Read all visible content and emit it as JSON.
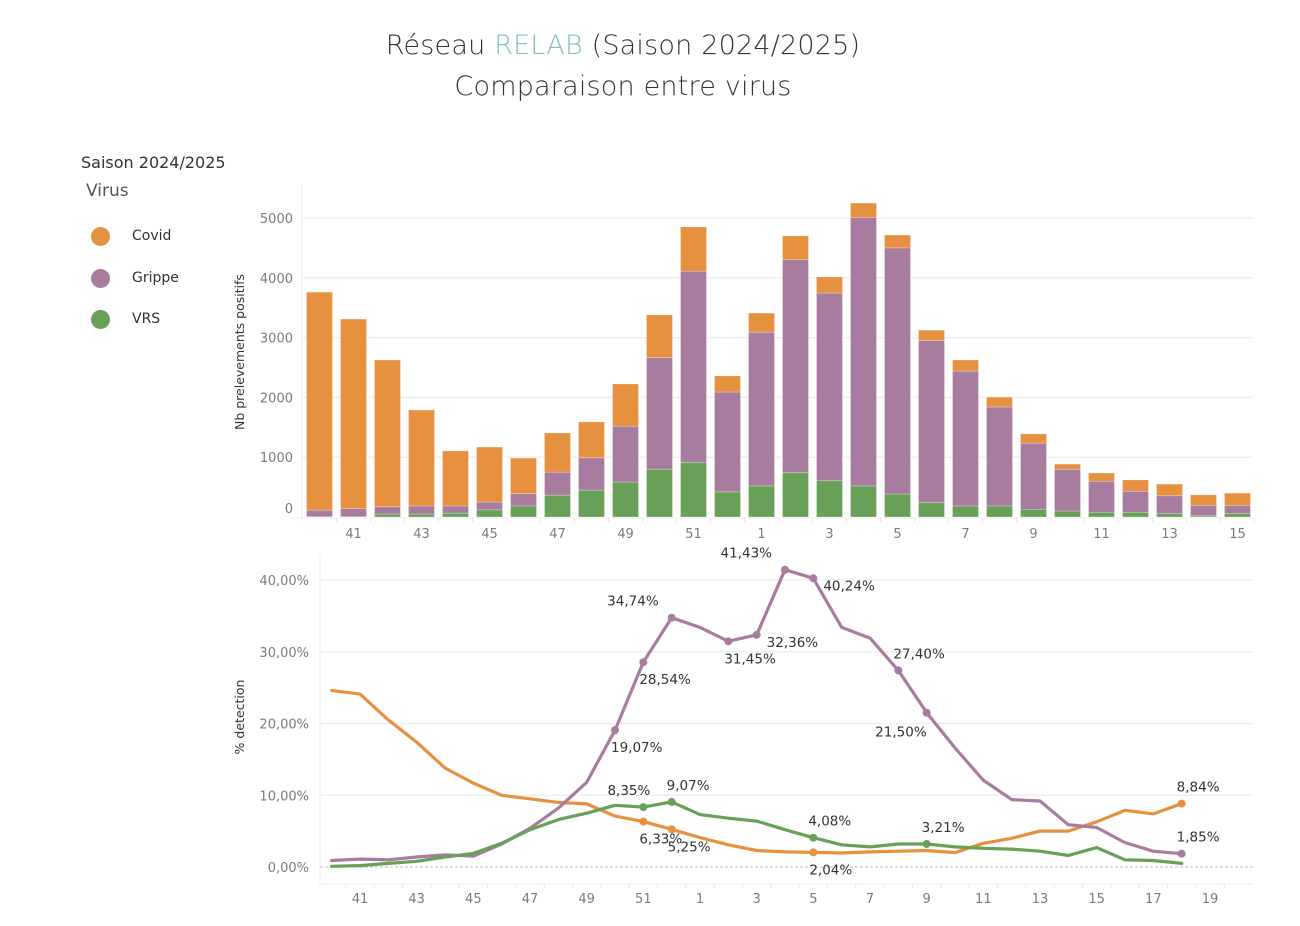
{
  "header": {
    "title_prefix": "Réseau ",
    "title_accent": "RELAB",
    "title_suffix": " (Saison 2024/2025)",
    "subtitle": "Comparaison entre virus",
    "accent_color": "#7fbfbd"
  },
  "legend": {
    "season": "Saison 2024/2025",
    "title": "Virus",
    "items": [
      {
        "label": "Covid",
        "color": "#e5913f"
      },
      {
        "label": "Grippe",
        "color": "#a77c9e"
      },
      {
        "label": "VRS",
        "color": "#67a056"
      }
    ]
  },
  "chart_data": [
    {
      "type": "bar",
      "stacked": true,
      "title": "",
      "xlabel": "",
      "ylabel": "Nb prelevements positifs",
      "ylim": [
        0,
        5300
      ],
      "yticks": [
        0,
        1000,
        2000,
        3000,
        4000,
        5000
      ],
      "ytick_labels": [
        "0",
        "1000",
        "2000",
        "3000",
        "4000",
        "5000"
      ],
      "grid": true,
      "categories": [
        40,
        41,
        42,
        43,
        44,
        45,
        46,
        47,
        48,
        49,
        50,
        51,
        52,
        1,
        2,
        3,
        4,
        5,
        6,
        7,
        8,
        9,
        10,
        11,
        12,
        13,
        14,
        15
      ],
      "xtick_labels": [
        "41",
        "43",
        "45",
        "47",
        "49",
        "51",
        "1",
        "3",
        "5",
        "7",
        "9",
        "11",
        "13",
        "15"
      ],
      "series": [
        {
          "name": "VRS",
          "color": "#67a056",
          "values": [
            5,
            5,
            50,
            50,
            65,
            120,
            185,
            365,
            450,
            585,
            800,
            915,
            420,
            520,
            745,
            610,
            520,
            385,
            240,
            185,
            185,
            130,
            100,
            80,
            80,
            55,
            20,
            55
          ]
        },
        {
          "name": "Grippe",
          "color": "#a77c9e",
          "values": [
            110,
            135,
            120,
            135,
            120,
            130,
            205,
            385,
            540,
            935,
            1865,
            3195,
            1670,
            2570,
            3560,
            3135,
            4490,
            4115,
            2710,
            2255,
            1655,
            1105,
            700,
            520,
            350,
            300,
            175,
            140
          ]
        },
        {
          "name": "Covid",
          "color": "#e5913f",
          "values": [
            3645,
            3170,
            2455,
            1605,
            920,
            920,
            595,
            655,
            600,
            705,
            715,
            740,
            270,
            320,
            395,
            270,
            240,
            215,
            175,
            185,
            165,
            155,
            85,
            135,
            190,
            195,
            175,
            205
          ]
        }
      ]
    },
    {
      "type": "line",
      "title": "",
      "xlabel": "",
      "ylabel": "% detection",
      "ylim": [
        -2.5,
        42
      ],
      "yticks": [
        0,
        10,
        20,
        30,
        40
      ],
      "ytick_labels": [
        "0,00%",
        "10,00%",
        "20,00%",
        "30,00%",
        "40,00%"
      ],
      "grid": true,
      "x": [
        40,
        41,
        42,
        43,
        44,
        45,
        46,
        47,
        48,
        49,
        50,
        51,
        52,
        1,
        2,
        3,
        4,
        5,
        6,
        7,
        8,
        9,
        10,
        11,
        12,
        13,
        14,
        15,
        16,
        17,
        18
      ],
      "xtick_labels": [
        "41",
        "43",
        "45",
        "47",
        "49",
        "51",
        "1",
        "3",
        "5",
        "7",
        "9",
        "11",
        "13",
        "15",
        "17",
        "19"
      ],
      "series": [
        {
          "name": "Covid",
          "color": "#e5913f",
          "values": [
            24.6,
            24.1,
            20.5,
            17.4,
            13.8,
            11.7,
            10.0,
            9.5,
            9.0,
            8.8,
            7.1,
            6.33,
            5.25,
            4.1,
            3.1,
            2.3,
            2.1,
            2.04,
            1.95,
            2.1,
            2.2,
            2.3,
            2.0,
            3.3,
            4.0,
            5.0,
            5.0,
            6.3,
            7.9,
            7.4,
            8.84
          ],
          "labels": [
            {
              "index": 11,
              "text": "6,33%",
              "pos": "below"
            },
            {
              "index": 12,
              "text": "5,25%",
              "pos": "below"
            },
            {
              "index": 17,
              "text": "2,04%",
              "pos": "below"
            },
            {
              "index": 30,
              "text": "8,84%",
              "pos": "above"
            }
          ]
        },
        {
          "name": "Grippe",
          "color": "#a77c9e",
          "values": [
            0.9,
            1.1,
            1.0,
            1.4,
            1.7,
            1.5,
            3.2,
            5.4,
            8.2,
            11.8,
            19.07,
            28.54,
            34.74,
            33.4,
            31.45,
            32.36,
            41.43,
            40.24,
            33.4,
            31.9,
            27.4,
            21.5,
            16.6,
            12.1,
            9.4,
            9.2,
            5.9,
            5.5,
            3.4,
            2.2,
            1.85
          ],
          "labels": [
            {
              "index": 10,
              "text": "19,07%",
              "pos": "below"
            },
            {
              "index": 11,
              "text": "28,54%",
              "pos": "below"
            },
            {
              "index": 12,
              "text": "34,74%",
              "pos": "left"
            },
            {
              "index": 14,
              "text": "31,45%",
              "pos": "below"
            },
            {
              "index": 15,
              "text": "32,36%",
              "pos": "right"
            },
            {
              "index": 16,
              "text": "41,43%",
              "pos": "left"
            },
            {
              "index": 17,
              "text": "40,24%",
              "pos": "right"
            },
            {
              "index": 20,
              "text": "27,40%",
              "pos": "above"
            },
            {
              "index": 21,
              "text": "21,50%",
              "pos": "belowleft"
            },
            {
              "index": 30,
              "text": "1,85%",
              "pos": "above"
            }
          ]
        },
        {
          "name": "VRS",
          "color": "#67a056",
          "values": [
            0.1,
            0.2,
            0.5,
            0.8,
            1.4,
            1.9,
            3.3,
            5.2,
            6.6,
            7.5,
            8.6,
            8.35,
            9.07,
            7.3,
            6.8,
            6.4,
            5.2,
            4.08,
            3.1,
            2.8,
            3.2,
            3.21,
            2.8,
            2.6,
            2.5,
            2.2,
            1.6,
            2.7,
            1.0,
            0.9,
            0.5
          ],
          "labels": [
            {
              "index": 11,
              "text": "8,35%",
              "pos": "aboveleft"
            },
            {
              "index": 12,
              "text": "9,07%",
              "pos": "above"
            },
            {
              "index": 17,
              "text": "4,08%",
              "pos": "above"
            },
            {
              "index": 21,
              "text": "3,21%",
              "pos": "above"
            }
          ]
        }
      ]
    }
  ]
}
